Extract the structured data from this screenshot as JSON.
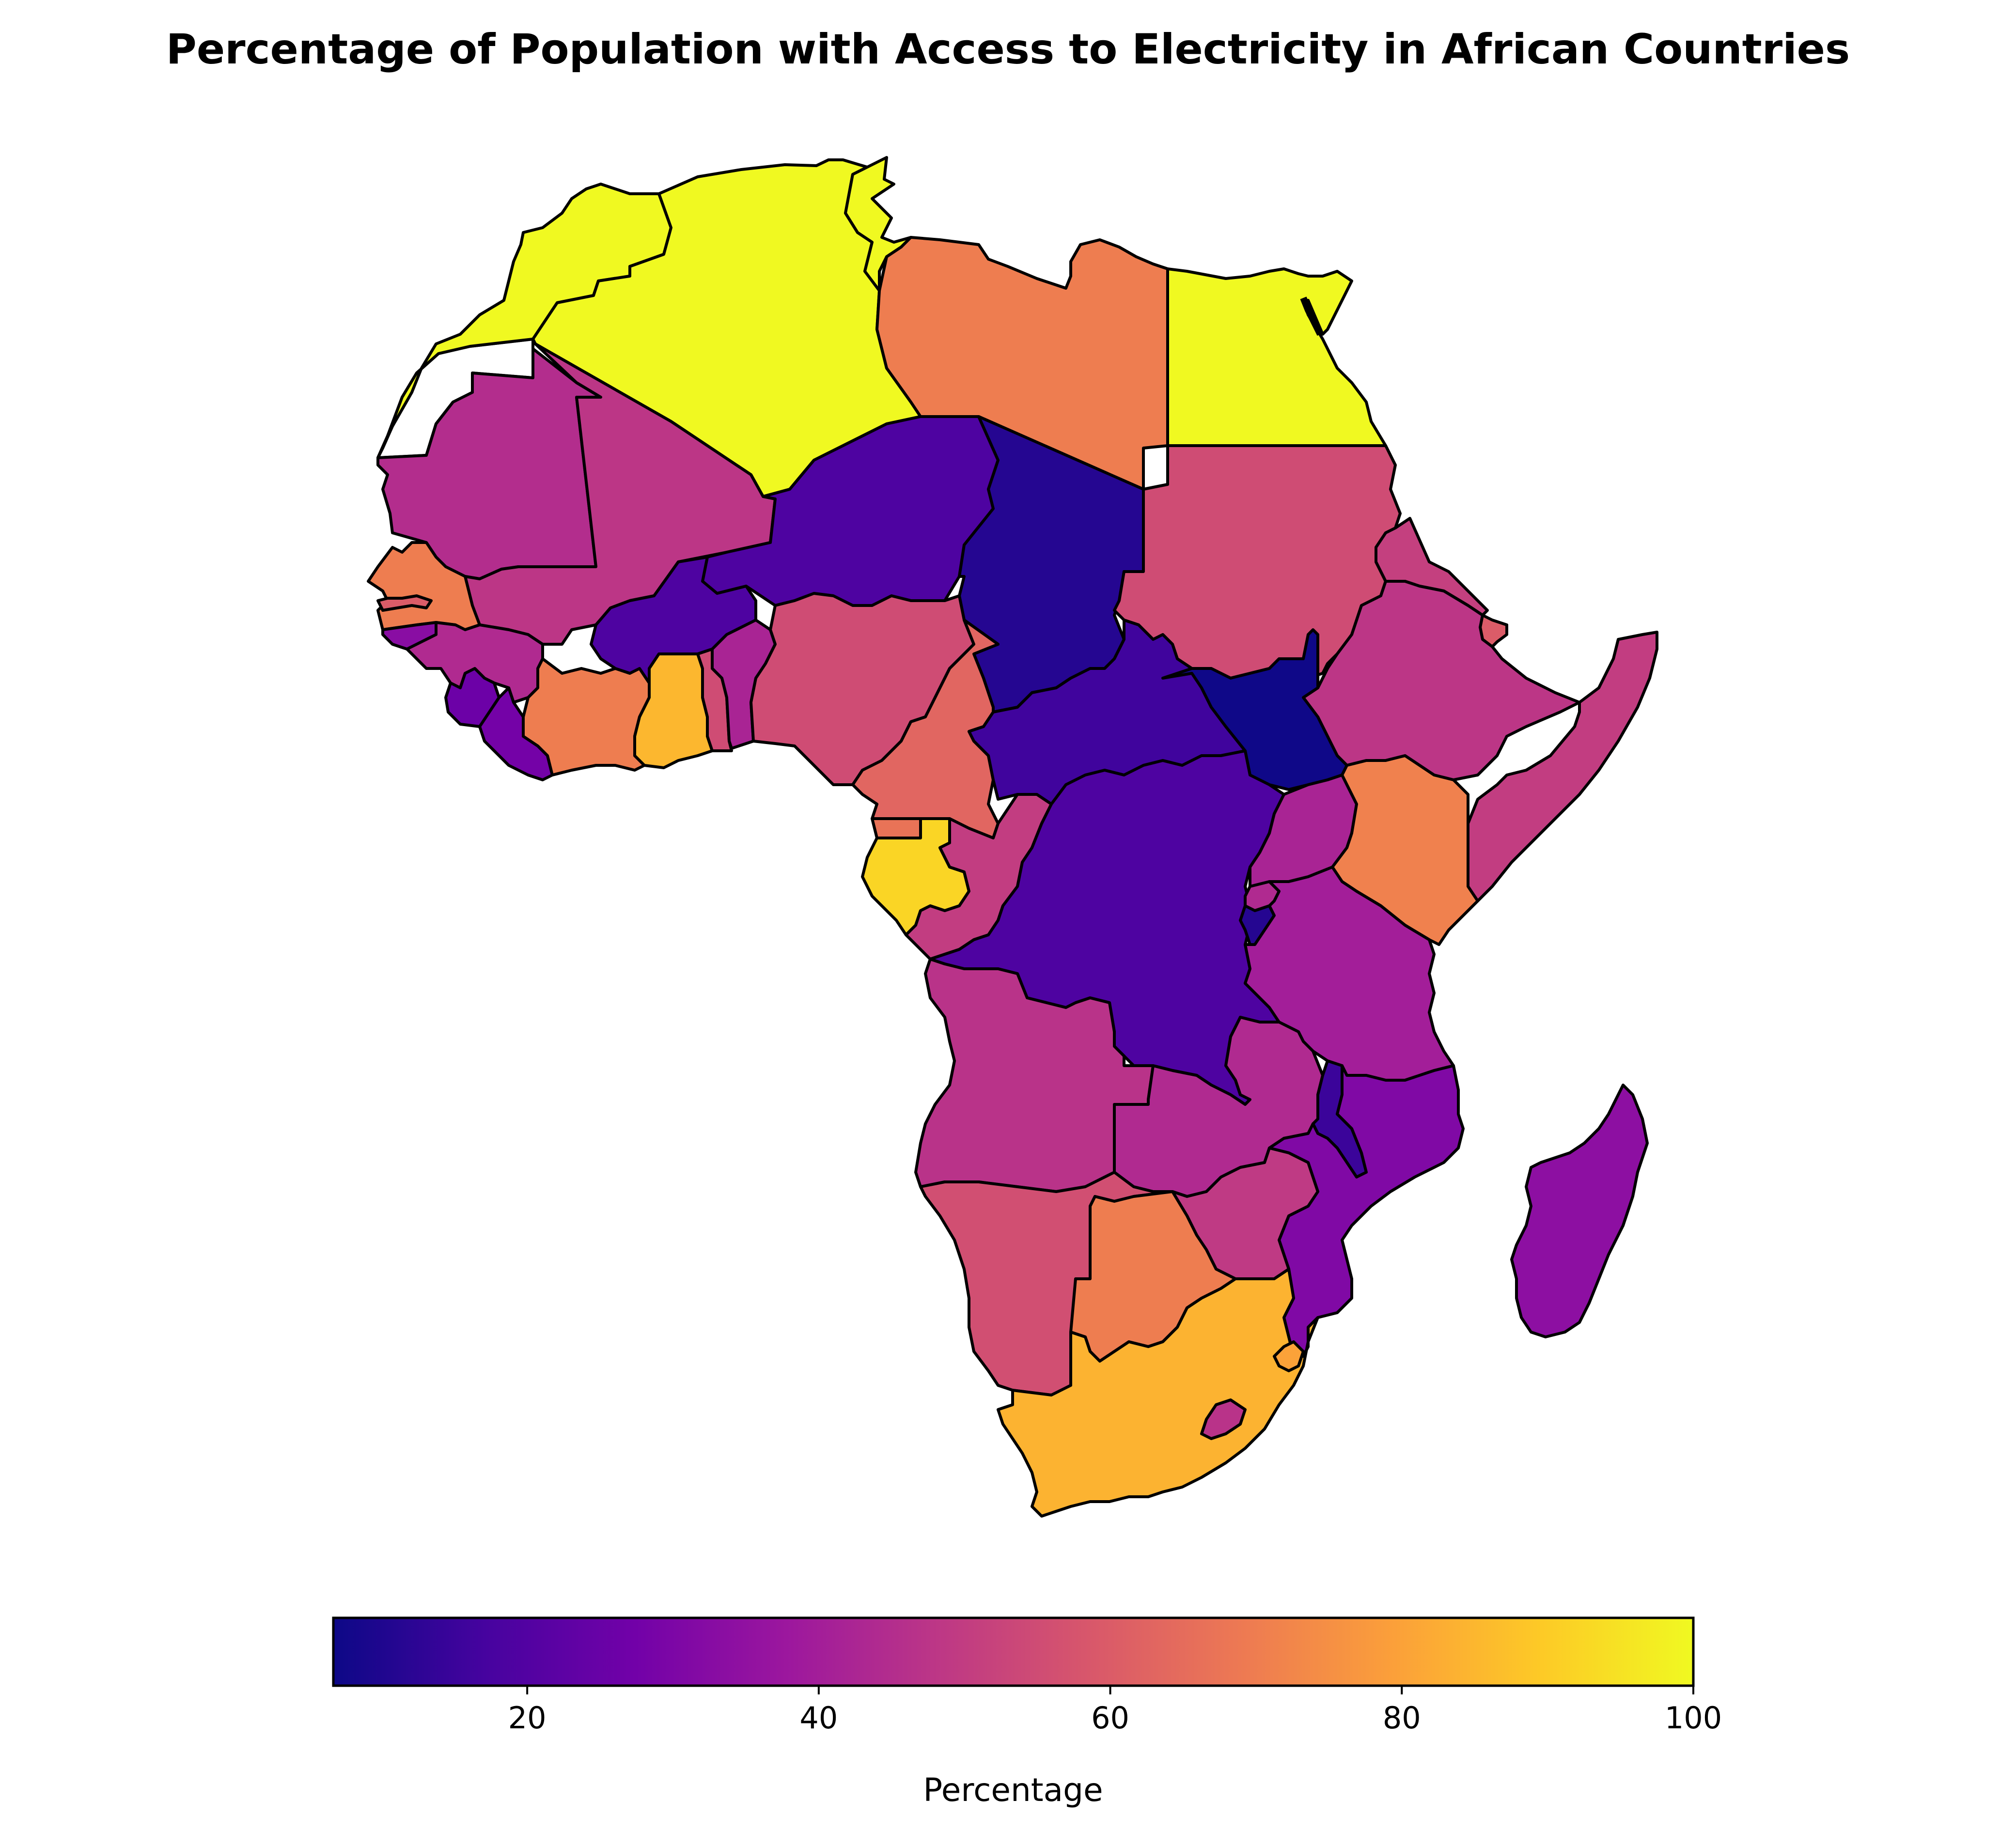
{
  "title": "Percentage of Population with Access to Electricity in African Countries",
  "colorbar": {
    "label": "Percentage",
    "min": 6.7,
    "max": 100,
    "ticks": [
      20,
      40,
      60,
      80,
      100
    ],
    "colormap": "plasma",
    "colormap_stops": [
      "#0d0887",
      "#46039f",
      "#7201a8",
      "#9c179e",
      "#bd3786",
      "#d8576b",
      "#ed7953",
      "#fb9f3a",
      "#fdca26",
      "#f0f921"
    ]
  },
  "chart_data": {
    "type": "choropleth",
    "region": "Africa",
    "value_label": "Percentage",
    "countries": [
      {
        "name": "Morocco",
        "value": 100
      },
      {
        "name": "Algeria",
        "value": 100
      },
      {
        "name": "Tunisia",
        "value": 100
      },
      {
        "name": "Libya",
        "value": 70
      },
      {
        "name": "Egypt",
        "value": 100
      },
      {
        "name": "Mauritania",
        "value": 45
      },
      {
        "name": "Mali",
        "value": 48
      },
      {
        "name": "Niger",
        "value": 19
      },
      {
        "name": "Chad",
        "value": 11
      },
      {
        "name": "Sudan",
        "value": 55
      },
      {
        "name": "Eritrea",
        "value": 51
      },
      {
        "name": "Djibouti",
        "value": 60
      },
      {
        "name": "Ethiopia",
        "value": 48
      },
      {
        "name": "Somalia",
        "value": 50
      },
      {
        "name": "Senegal",
        "value": 70
      },
      {
        "name": "Gambia",
        "value": 60
      },
      {
        "name": "Guinea-Bissau",
        "value": 33
      },
      {
        "name": "Guinea",
        "value": 44
      },
      {
        "name": "Sierra Leone",
        "value": 26
      },
      {
        "name": "Liberia",
        "value": 28
      },
      {
        "name": "Côte d'Ivoire",
        "value": 70
      },
      {
        "name": "Burkina Faso",
        "value": 19
      },
      {
        "name": "Ghana",
        "value": 85
      },
      {
        "name": "Togo",
        "value": 55
      },
      {
        "name": "Benin",
        "value": 42
      },
      {
        "name": "Nigeria",
        "value": 55
      },
      {
        "name": "Cameroon",
        "value": 63
      },
      {
        "name": "Central African Republic",
        "value": 16
      },
      {
        "name": "South Sudan",
        "value": 7
      },
      {
        "name": "Equatorial Guinea",
        "value": 67
      },
      {
        "name": "Gabon",
        "value": 92
      },
      {
        "name": "Republic of the Congo",
        "value": 50
      },
      {
        "name": "Democratic Republic of the Congo",
        "value": 19
      },
      {
        "name": "Uganda",
        "value": 42
      },
      {
        "name": "Kenya",
        "value": 71
      },
      {
        "name": "Rwanda",
        "value": 44
      },
      {
        "name": "Burundi",
        "value": 11
      },
      {
        "name": "Tanzania",
        "value": 40
      },
      {
        "name": "Angola",
        "value": 47
      },
      {
        "name": "Zambia",
        "value": 44
      },
      {
        "name": "Malawi",
        "value": 15
      },
      {
        "name": "Mozambique",
        "value": 31
      },
      {
        "name": "Zimbabwe",
        "value": 49
      },
      {
        "name": "Namibia",
        "value": 56
      },
      {
        "name": "Botswana",
        "value": 70
      },
      {
        "name": "South Africa",
        "value": 84
      },
      {
        "name": "Eswatini",
        "value": 80
      },
      {
        "name": "Lesotho",
        "value": 47
      },
      {
        "name": "Madagascar",
        "value": 34
      },
      {
        "name": "Western Sahara",
        "value": null
      }
    ]
  }
}
